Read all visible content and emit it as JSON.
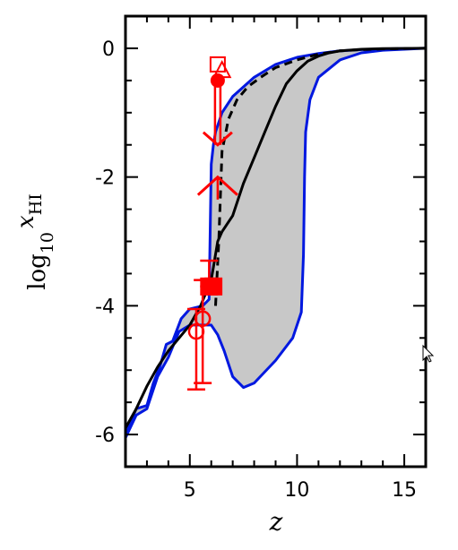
{
  "chart_data": {
    "type": "line",
    "title": "",
    "xlabel": "z",
    "ylabel_main": "log",
    "ylabel_sub": "10",
    "ylabel_var": "x",
    "ylabel_var_sub": "HI",
    "xlim": [
      2,
      16
    ],
    "ylim": [
      -6.5,
      0.5
    ],
    "x_ticks": [
      5,
      10,
      15
    ],
    "x_tick_labels": [
      "5",
      "10",
      "15"
    ],
    "y_ticks": [
      0,
      -2,
      -4,
      -6
    ],
    "y_tick_labels": [
      "0",
      "-2",
      "-4",
      "-6"
    ],
    "grid": false,
    "legend": "none",
    "colors": {
      "band_fill": "#c8c8c8",
      "band_edge": "#0018e0",
      "model": "#000000",
      "observations": "#ff0000"
    },
    "band": {
      "upper_edge": [
        [
          2,
          -6.0
        ],
        [
          2.5,
          -5.6
        ],
        [
          3,
          -5.55
        ],
        [
          3.3,
          -5.2
        ],
        [
          3.6,
          -4.95
        ],
        [
          3.9,
          -4.6
        ],
        [
          4.2,
          -4.55
        ],
        [
          4.6,
          -4.2
        ],
        [
          5.0,
          -4.05
        ],
        [
          5.6,
          -4.0
        ],
        [
          5.9,
          -3.9
        ],
        [
          6.0,
          -1.8
        ],
        [
          6.1,
          -1.5
        ],
        [
          6.2,
          -1.3
        ],
        [
          6.5,
          -1.0
        ],
        [
          7,
          -0.75
        ],
        [
          8,
          -0.45
        ],
        [
          9,
          -0.25
        ],
        [
          10,
          -0.14
        ],
        [
          11,
          -0.08
        ],
        [
          12,
          -0.04
        ],
        [
          13,
          -0.02
        ],
        [
          14,
          -0.01
        ],
        [
          16,
          0.0
        ]
      ],
      "lower_edge": [
        [
          2,
          -6.05
        ],
        [
          2.5,
          -5.7
        ],
        [
          3,
          -5.6
        ],
        [
          3.5,
          -5.1
        ],
        [
          4,
          -4.8
        ],
        [
          4.5,
          -4.4
        ],
        [
          5,
          -4.3
        ],
        [
          5.5,
          -4.3
        ],
        [
          6,
          -4.3
        ],
        [
          6.3,
          -4.45
        ],
        [
          6.6,
          -4.7
        ],
        [
          7,
          -5.1
        ],
        [
          7.5,
          -5.27
        ],
        [
          8,
          -5.2
        ],
        [
          9,
          -4.85
        ],
        [
          9.8,
          -4.5
        ],
        [
          10.2,
          -4.1
        ],
        [
          10.3,
          -3.2
        ],
        [
          10.35,
          -2.0
        ],
        [
          10.4,
          -1.3
        ],
        [
          10.6,
          -0.8
        ],
        [
          11,
          -0.45
        ],
        [
          12,
          -0.18
        ],
        [
          13,
          -0.07
        ],
        [
          14,
          -0.03
        ],
        [
          16,
          0.0
        ]
      ]
    },
    "series": [
      {
        "style": "solid",
        "x": [
          2,
          2.5,
          3,
          3.5,
          4,
          4.5,
          5,
          5.5,
          6,
          6.3,
          6.5,
          7,
          7.5,
          8,
          8.5,
          9,
          9.5,
          10,
          10.5,
          11,
          11.5,
          12,
          13,
          14,
          16
        ],
        "y": [
          -5.9,
          -5.6,
          -5.25,
          -4.95,
          -4.7,
          -4.5,
          -4.3,
          -4.0,
          -3.6,
          -3.0,
          -2.85,
          -2.6,
          -2.1,
          -1.7,
          -1.3,
          -0.9,
          -0.55,
          -0.35,
          -0.2,
          -0.12,
          -0.07,
          -0.04,
          -0.015,
          -0.005,
          0.0
        ]
      },
      {
        "style": "dashed",
        "x": [
          6.2,
          6.35,
          6.5,
          6.8,
          7.2,
          7.7,
          8.3,
          9,
          10,
          11,
          12,
          13,
          14,
          16
        ],
        "y": [
          -4.0,
          -3.0,
          -1.6,
          -1.1,
          -0.8,
          -0.6,
          -0.45,
          -0.3,
          -0.18,
          -0.09,
          -0.04,
          -0.02,
          -0.01,
          0.0
        ]
      }
    ],
    "observations": [
      {
        "x": 5.3,
        "y": -4.4,
        "marker": "open-circle",
        "err_low": 0.9,
        "err_high": 0.35
      },
      {
        "x": 5.6,
        "y": -4.2,
        "marker": "open-circle",
        "err_low": 1.0,
        "err_high": 0.6
      },
      {
        "x": 5.9,
        "y": -3.7,
        "marker": "filled-square",
        "err_low": 0.0,
        "err_high": 0.4
      },
      {
        "x": 6.1,
        "y": -3.7,
        "marker": "filled-square",
        "err_low": 0.0,
        "err_high": 0.0
      },
      {
        "x": 6.3,
        "y": -0.5,
        "marker": "filled-circle",
        "err_low": 0.0,
        "err_high": 0.0
      },
      {
        "x": 6.5,
        "y": -0.35,
        "marker": "open-triangle",
        "err_low": 0.0,
        "err_high": 0.0
      },
      {
        "x": 6.3,
        "y": -0.25,
        "marker": "open-square",
        "err_low": 0.0,
        "err_high": 0.0
      }
    ],
    "upper_limits": [
      {
        "x": 6.3,
        "from": -0.5,
        "to": -1.5
      }
    ],
    "lower_limits": [
      {
        "x": 6.3,
        "from": -2.35,
        "to": -2.0
      }
    ]
  }
}
